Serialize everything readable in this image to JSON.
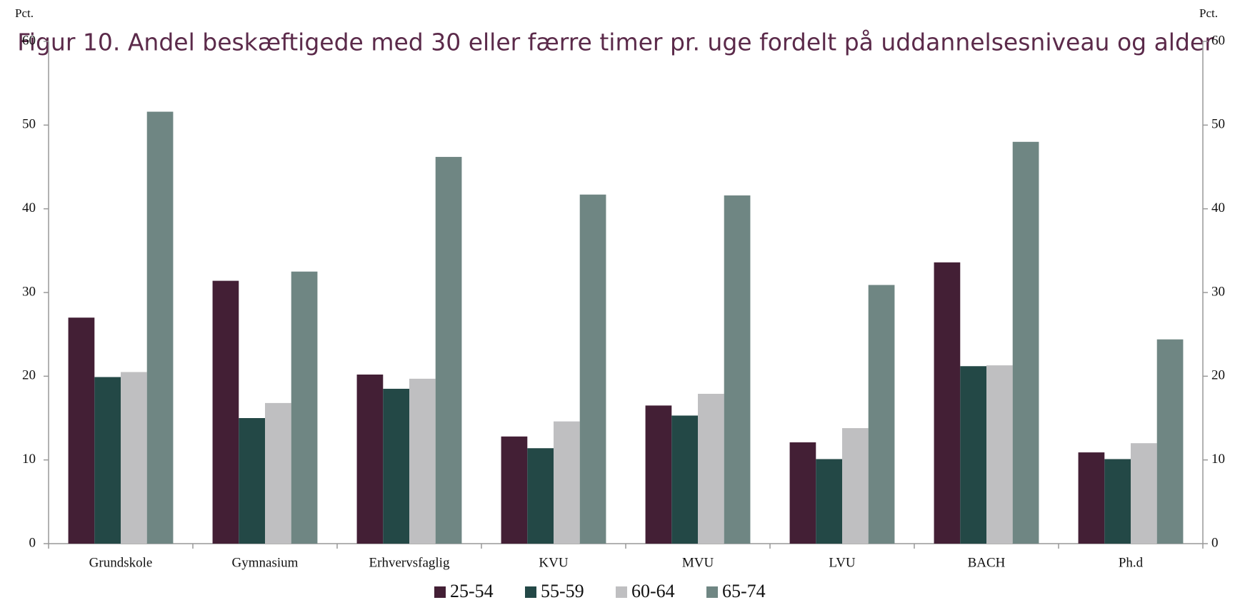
{
  "chart_data": {
    "type": "bar",
    "title": "Figur 10. Andel beskæftigede med 30 eller færre timer pr. uge fordelt på uddannelsesniveau og alder",
    "y_label": "Pct.",
    "y2_label": "Pct.",
    "categories": [
      "Grundskole",
      "Gymnasium",
      "Erhvervsfaglig",
      "KVU",
      "MVU",
      "LVU",
      "BACH",
      "Ph.d"
    ],
    "series": [
      {
        "name": "25-54",
        "color": "#431f35",
        "values": [
          27.0,
          31.4,
          20.2,
          12.8,
          16.5,
          12.1,
          33.6,
          10.9
        ]
      },
      {
        "name": "55-59",
        "color": "#234846",
        "values": [
          19.9,
          15.0,
          18.5,
          11.4,
          15.3,
          10.1,
          21.2,
          10.1
        ]
      },
      {
        "name": "60-64",
        "color": "#bfbfc1",
        "values": [
          20.5,
          16.8,
          19.7,
          14.6,
          17.9,
          13.8,
          21.3,
          12.0
        ]
      },
      {
        "name": "65-74",
        "color": "#6f8683",
        "values": [
          51.6,
          32.5,
          46.2,
          41.7,
          41.6,
          30.9,
          48.0,
          24.4
        ]
      }
    ],
    "ylim": [
      0,
      60
    ],
    "yticks": [
      0,
      10,
      20,
      30,
      40,
      50,
      60
    ],
    "y2lim": [
      0,
      60
    ],
    "y2ticks": [
      0,
      10,
      20,
      30,
      40,
      50,
      60
    ],
    "legend": "bottom"
  }
}
